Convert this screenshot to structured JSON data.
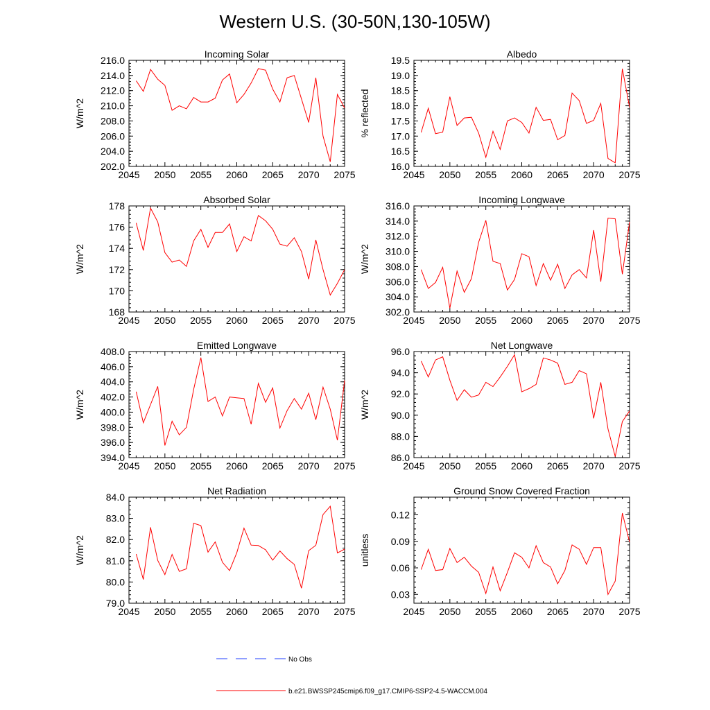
{
  "title": "Western U.S. (30-50N,130-105W)",
  "colors": {
    "model": "#ff0000",
    "obs": "#1f3fff",
    "axis": "#000000"
  },
  "legend": {
    "obs_label": "No Obs",
    "model_label": "b.e21.BWSSP245cmip6.f09_g17.CMIP6-SSP2-4.5-WACCM.004"
  },
  "chart_data": [
    {
      "type": "line",
      "title": "Incoming Solar",
      "ylabel": "W/m^2",
      "xlim": [
        2045,
        2075
      ],
      "ylim": [
        202,
        216
      ],
      "xticks": [
        2045,
        2050,
        2055,
        2060,
        2065,
        2070,
        2075
      ],
      "yticks": [
        "202.0",
        "204.0",
        "206.0",
        "208.0",
        "210.0",
        "212.0",
        "214.0",
        "216.0"
      ],
      "x": [
        2046,
        2047,
        2048,
        2049,
        2050,
        2051,
        2052,
        2053,
        2054,
        2055,
        2056,
        2057,
        2058,
        2059,
        2060,
        2061,
        2062,
        2063,
        2064,
        2065,
        2066,
        2067,
        2068,
        2069,
        2070,
        2071,
        2072,
        2073,
        2074,
        2075
      ],
      "series": [
        {
          "values": [
            213.3,
            211.9,
            214.8,
            213.5,
            212.7,
            209.4,
            210.0,
            209.6,
            211.1,
            210.5,
            210.5,
            211.0,
            213.4,
            214.2,
            210.4,
            211.5,
            213.0,
            214.9,
            214.7,
            212.2,
            210.5,
            213.7,
            214.0,
            210.9,
            207.8,
            213.7,
            206.0,
            202.6,
            211.5,
            209.7
          ]
        }
      ]
    },
    {
      "type": "line",
      "title": "Albedo",
      "ylabel": "% reflected",
      "xlim": [
        2045,
        2075
      ],
      "ylim": [
        16,
        19.5
      ],
      "xticks": [
        2045,
        2050,
        2055,
        2060,
        2065,
        2070,
        2075
      ],
      "yticks": [
        "16.0",
        "16.5",
        "17.0",
        "17.5",
        "18.0",
        "18.5",
        "19.0",
        "19.5"
      ],
      "x": [
        2046,
        2047,
        2048,
        2049,
        2050,
        2051,
        2052,
        2053,
        2054,
        2055,
        2056,
        2057,
        2058,
        2059,
        2060,
        2061,
        2062,
        2063,
        2064,
        2065,
        2066,
        2067,
        2068,
        2069,
        2070,
        2071,
        2072,
        2073,
        2074,
        2075
      ],
      "series": [
        {
          "values": [
            17.12,
            17.92,
            17.08,
            17.13,
            18.3,
            17.35,
            17.6,
            17.62,
            17.1,
            16.3,
            17.16,
            16.56,
            17.5,
            17.6,
            17.45,
            17.1,
            17.95,
            17.52,
            17.55,
            16.88,
            17.02,
            18.42,
            18.17,
            17.42,
            17.52,
            18.08,
            16.26,
            16.12,
            19.22,
            17.95
          ]
        }
      ]
    },
    {
      "type": "line",
      "title": "Absorbed Solar",
      "ylabel": "W/m^2",
      "xlim": [
        2045,
        2075
      ],
      "ylim": [
        168,
        178
      ],
      "xticks": [
        2045,
        2050,
        2055,
        2060,
        2065,
        2070,
        2075
      ],
      "yticks": [
        "168",
        "170",
        "172",
        "174",
        "176",
        "178"
      ],
      "x": [
        2046,
        2047,
        2048,
        2049,
        2050,
        2051,
        2052,
        2053,
        2054,
        2055,
        2056,
        2057,
        2058,
        2059,
        2060,
        2061,
        2062,
        2063,
        2064,
        2065,
        2066,
        2067,
        2068,
        2069,
        2070,
        2071,
        2072,
        2073,
        2074,
        2075
      ],
      "series": [
        {
          "values": [
            176.4,
            173.8,
            177.8,
            176.5,
            173.6,
            172.7,
            172.9,
            172.3,
            174.7,
            175.8,
            174.1,
            175.5,
            175.5,
            176.3,
            173.7,
            175.1,
            174.7,
            177.1,
            176.6,
            175.8,
            174.4,
            174.2,
            175.0,
            173.7,
            171.1,
            174.8,
            172.0,
            169.6,
            170.7,
            172.0
          ]
        }
      ]
    },
    {
      "type": "line",
      "title": "Incoming Longwave",
      "ylabel": "W/m^2",
      "xlim": [
        2045,
        2075
      ],
      "ylim": [
        302,
        316
      ],
      "xticks": [
        2045,
        2050,
        2055,
        2060,
        2065,
        2070,
        2075
      ],
      "yticks": [
        "302.0",
        "304.0",
        "306.0",
        "308.0",
        "310.0",
        "312.0",
        "314.0",
        "316.0"
      ],
      "x": [
        2046,
        2047,
        2048,
        2049,
        2050,
        2051,
        2052,
        2053,
        2054,
        2055,
        2056,
        2057,
        2058,
        2059,
        2060,
        2061,
        2062,
        2063,
        2064,
        2065,
        2066,
        2067,
        2068,
        2069,
        2070,
        2071,
        2072,
        2073,
        2074,
        2075
      ],
      "series": [
        {
          "values": [
            307.6,
            305.1,
            305.9,
            307.9,
            302.5,
            307.4,
            304.6,
            306.4,
            311.2,
            314.1,
            308.7,
            308.4,
            304.9,
            306.3,
            309.7,
            309.3,
            305.5,
            308.4,
            306.2,
            308.3,
            305.1,
            306.9,
            307.6,
            306.5,
            312.8,
            306.0,
            314.4,
            314.3,
            307.0,
            313.9
          ]
        }
      ]
    },
    {
      "type": "line",
      "title": "Emitted Longwave",
      "ylabel": "W/m^2",
      "xlim": [
        2045,
        2075
      ],
      "ylim": [
        394,
        408
      ],
      "xticks": [
        2045,
        2050,
        2055,
        2060,
        2065,
        2070,
        2075
      ],
      "yticks": [
        "394.0",
        "396.0",
        "398.0",
        "400.0",
        "402.0",
        "404.0",
        "406.0",
        "408.0"
      ],
      "x": [
        2046,
        2047,
        2048,
        2049,
        2050,
        2051,
        2052,
        2053,
        2054,
        2055,
        2056,
        2057,
        2058,
        2059,
        2060,
        2061,
        2062,
        2063,
        2064,
        2065,
        2066,
        2067,
        2068,
        2069,
        2070,
        2071,
        2072,
        2073,
        2074,
        2075
      ],
      "series": [
        {
          "values": [
            402.7,
            398.6,
            401.0,
            403.4,
            395.6,
            398.8,
            397.0,
            398.0,
            403.0,
            407.2,
            401.4,
            402.0,
            399.5,
            402.0,
            401.9,
            401.8,
            398.4,
            403.8,
            401.3,
            403.2,
            397.9,
            400.2,
            401.8,
            400.4,
            402.5,
            399.0,
            403.3,
            400.4,
            396.3,
            404.2
          ]
        }
      ]
    },
    {
      "type": "line",
      "title": "Net Longwave",
      "ylabel": "W/m^2",
      "xlim": [
        2045,
        2075
      ],
      "ylim": [
        86,
        96
      ],
      "xticks": [
        2045,
        2050,
        2055,
        2060,
        2065,
        2070,
        2075
      ],
      "yticks": [
        "86.0",
        "88.0",
        "90.0",
        "92.0",
        "94.0",
        "96.0"
      ],
      "x": [
        2046,
        2047,
        2048,
        2049,
        2050,
        2051,
        2052,
        2053,
        2054,
        2055,
        2056,
        2057,
        2058,
        2059,
        2060,
        2061,
        2062,
        2063,
        2064,
        2065,
        2066,
        2067,
        2068,
        2069,
        2070,
        2071,
        2072,
        2073,
        2074,
        2075
      ],
      "series": [
        {
          "values": [
            95.1,
            93.6,
            95.2,
            95.5,
            93.3,
            91.4,
            92.4,
            91.7,
            91.9,
            93.1,
            92.7,
            93.6,
            94.6,
            95.7,
            92.2,
            92.5,
            92.9,
            95.4,
            95.2,
            94.9,
            92.9,
            93.1,
            94.2,
            93.9,
            89.7,
            93.1,
            88.7,
            86.1,
            89.4,
            90.4
          ]
        }
      ]
    },
    {
      "type": "line",
      "title": "Net Radiation",
      "ylabel": "W/m^2",
      "xlim": [
        2045,
        2075
      ],
      "ylim": [
        79,
        84
      ],
      "xticks": [
        2045,
        2050,
        2055,
        2060,
        2065,
        2070,
        2075
      ],
      "yticks": [
        "79.0",
        "80.0",
        "81.0",
        "82.0",
        "83.0",
        "84.0"
      ],
      "x": [
        2046,
        2047,
        2048,
        2049,
        2050,
        2051,
        2052,
        2053,
        2054,
        2055,
        2056,
        2057,
        2058,
        2059,
        2060,
        2061,
        2062,
        2063,
        2064,
        2065,
        2066,
        2067,
        2068,
        2069,
        2070,
        2071,
        2072,
        2073,
        2074,
        2075
      ],
      "series": [
        {
          "values": [
            81.32,
            80.12,
            82.58,
            81.02,
            80.35,
            81.3,
            80.5,
            80.62,
            82.77,
            82.66,
            81.41,
            81.89,
            80.93,
            80.54,
            81.38,
            82.54,
            81.74,
            81.72,
            81.52,
            81.03,
            81.46,
            81.1,
            80.83,
            79.71,
            81.48,
            81.73,
            83.18,
            83.57,
            81.37,
            81.55
          ]
        }
      ]
    },
    {
      "type": "line",
      "title": "Ground Snow Covered Fraction",
      "ylabel": "unitless",
      "xlim": [
        2045,
        2075
      ],
      "ylim": [
        0.02,
        0.14
      ],
      "xticks": [
        2045,
        2050,
        2055,
        2060,
        2065,
        2070,
        2075
      ],
      "yticks": [
        "0.03",
        "0.06",
        "0.09",
        "0.12"
      ],
      "ytick_values": [
        0.03,
        0.06,
        0.09,
        0.12
      ],
      "x": [
        2046,
        2047,
        2048,
        2049,
        2050,
        2051,
        2052,
        2053,
        2054,
        2055,
        2056,
        2057,
        2058,
        2059,
        2060,
        2061,
        2062,
        2063,
        2064,
        2065,
        2066,
        2067,
        2068,
        2069,
        2070,
        2071,
        2072,
        2073,
        2074,
        2075
      ],
      "series": [
        {
          "values": [
            0.058,
            0.081,
            0.057,
            0.058,
            0.082,
            0.066,
            0.072,
            0.062,
            0.055,
            0.031,
            0.061,
            0.034,
            0.055,
            0.077,
            0.072,
            0.06,
            0.085,
            0.066,
            0.061,
            0.042,
            0.057,
            0.086,
            0.081,
            0.064,
            0.083,
            0.083,
            0.03,
            0.045,
            0.122,
            0.089
          ]
        }
      ]
    }
  ]
}
